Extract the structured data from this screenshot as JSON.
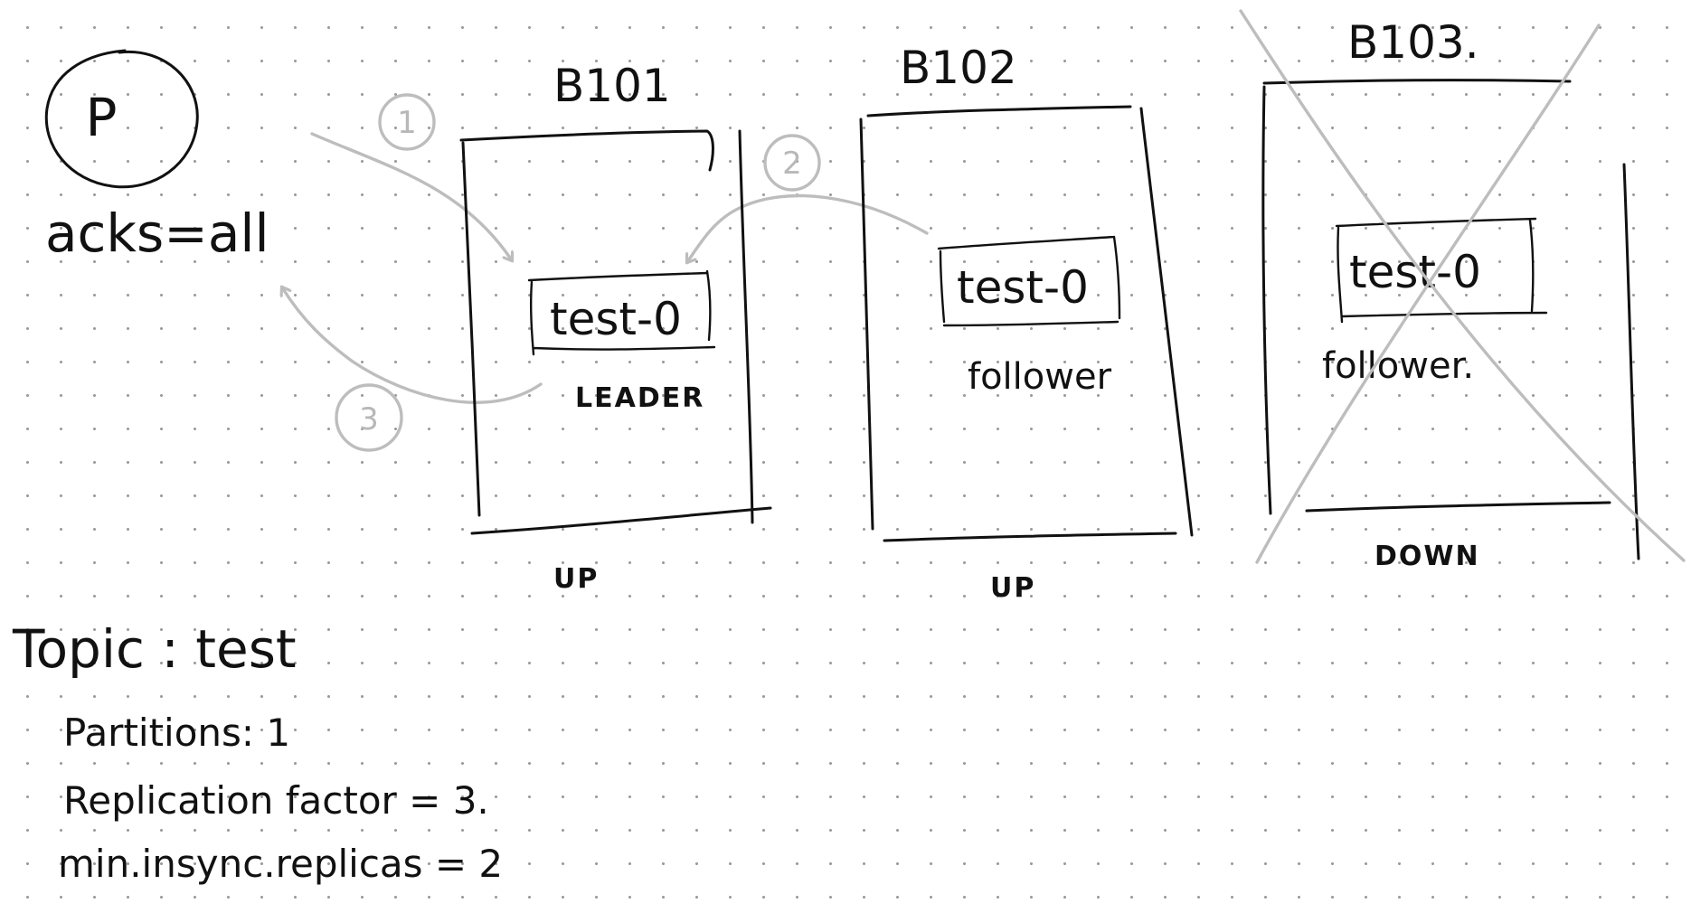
{
  "producer": {
    "label": "P",
    "config": "acks=all"
  },
  "brokers": [
    {
      "name": "B101",
      "partition": "test-0",
      "role": "LEADER",
      "status": "UP"
    },
    {
      "name": "B102",
      "partition": "test-0",
      "role": "follower",
      "status": "UP"
    },
    {
      "name": "B103.",
      "partition": "test-0",
      "role": "follower.",
      "status": "DOWN"
    }
  ],
  "steps": [
    "1",
    "2",
    "3"
  ],
  "topic": {
    "title": "Topic : test",
    "partitions": "Partitions: 1",
    "replication_factor": "Replication factor = 3.",
    "min_insync_replicas": "min.insync.replicas = 2"
  },
  "colors": {
    "ink": "#111111",
    "ghost": "#bdbdbd",
    "grid_dot": "#9a9a9a",
    "background": "#ffffff"
  }
}
